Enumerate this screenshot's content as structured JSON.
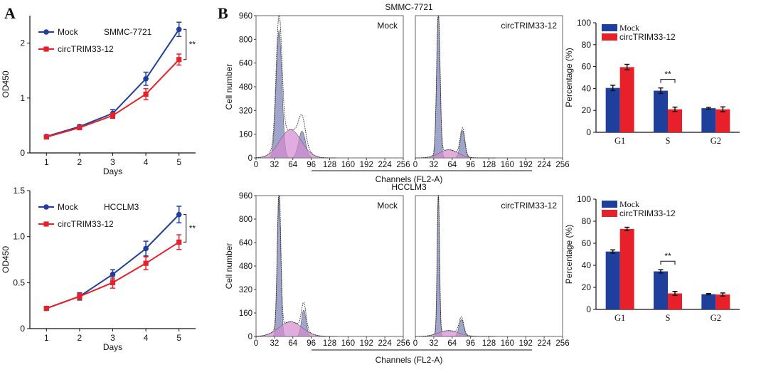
{
  "panel_labels": [
    "A",
    "B"
  ],
  "colors": {
    "mock": "#1f3f9c",
    "circ": "#e8202a",
    "hist_fill": "#8f96c2",
    "hist_pink": "#d48ad0"
  },
  "chart_data": [
    {
      "id": "A-top",
      "type": "line",
      "title": "SMMC-7721",
      "xlabel": "Days",
      "ylabel": "OD450",
      "x": [
        1,
        2,
        3,
        4,
        5
      ],
      "xlim": [
        0.5,
        5.5
      ],
      "ylim": [
        0,
        2.5
      ],
      "y_ticks": [
        0,
        1,
        2
      ],
      "tick_labels_y": [
        "0",
        "1",
        "2"
      ],
      "tick_labels_x": [
        "1",
        "2",
        "3",
        "4",
        "5"
      ],
      "series": [
        {
          "name": "Mock",
          "color": "#1f3f9c",
          "values": [
            0.3,
            0.48,
            0.72,
            1.35,
            2.25
          ],
          "errors": [
            0.03,
            0.03,
            0.07,
            0.12,
            0.13
          ]
        },
        {
          "name": "circTRIM33-12",
          "color": "#e8202a",
          "values": [
            0.29,
            0.46,
            0.68,
            1.07,
            1.7
          ],
          "errors": [
            0.03,
            0.03,
            0.05,
            0.1,
            0.1
          ]
        }
      ],
      "significance": "**",
      "legend": "top-left"
    },
    {
      "id": "A-bottom",
      "type": "line",
      "title": "HCCLM3",
      "xlabel": "Days",
      "ylabel": "OD450",
      "x": [
        1,
        2,
        3,
        4,
        5
      ],
      "xlim": [
        0.5,
        5.5
      ],
      "ylim": [
        0,
        1.5
      ],
      "y_ticks": [
        0,
        0.5,
        1.0,
        1.5
      ],
      "tick_labels_y": [
        "0",
        "0.5",
        "1.0",
        "1.5"
      ],
      "tick_labels_x": [
        "1",
        "2",
        "3",
        "4",
        "5"
      ],
      "series": [
        {
          "name": "Mock",
          "color": "#1f3f9c",
          "values": [
            0.22,
            0.35,
            0.59,
            0.87,
            1.24
          ],
          "errors": [
            0.02,
            0.04,
            0.05,
            0.08,
            0.09
          ]
        },
        {
          "name": "circTRIM33-12",
          "color": "#e8202a",
          "values": [
            0.22,
            0.35,
            0.5,
            0.71,
            0.94
          ],
          "errors": [
            0.02,
            0.03,
            0.06,
            0.07,
            0.08
          ]
        }
      ],
      "significance": "**",
      "legend": "top-left"
    },
    {
      "id": "B-top-left",
      "type": "area",
      "title": "Mock",
      "section_title": "SMMC-7721",
      "xlabel": "Channels (FL2-A)",
      "ylabel": "Cell number",
      "xlim": [
        0,
        256
      ],
      "ylim": [
        0,
        960
      ],
      "x_ticks": [
        0,
        32,
        64,
        96,
        128,
        160,
        192,
        224,
        256
      ],
      "y_ticks": [
        0,
        160,
        320,
        480,
        640,
        800,
        960
      ],
      "g1_peak": {
        "x": 40,
        "height": 860,
        "sd": 5
      },
      "s_phase": {
        "x": 60,
        "height": 190,
        "sd": 14
      },
      "g2_peak": {
        "x": 80,
        "height": 180,
        "sd": 6
      }
    },
    {
      "id": "B-top-right",
      "type": "area",
      "title": "circTRIM33-12",
      "xlabel": "Channels (FL2-A)",
      "ylabel": "",
      "xlim": [
        0,
        256
      ],
      "ylim": [
        0,
        960
      ],
      "x_ticks": [
        0,
        32,
        64,
        96,
        128,
        160,
        192,
        224,
        256
      ],
      "g1_peak": {
        "x": 40,
        "height": 960,
        "sd": 3
      },
      "s_phase": {
        "x": 58,
        "height": 55,
        "sd": 12
      },
      "g2_peak": {
        "x": 82,
        "height": 185,
        "sd": 4
      }
    },
    {
      "id": "B-bottom-left",
      "type": "area",
      "title": "Mock",
      "section_title": "HCCLM3",
      "xlabel": "Channels (FL2-A)",
      "ylabel": "Cell number",
      "xlim": [
        0,
        256
      ],
      "ylim": [
        0,
        960
      ],
      "x_ticks": [
        0,
        32,
        64,
        96,
        128,
        160,
        192,
        224,
        256
      ],
      "y_ticks": [
        0,
        160,
        320,
        480,
        640,
        800,
        960
      ],
      "g1_peak": {
        "x": 40,
        "height": 960,
        "sd": 3
      },
      "s_phase": {
        "x": 60,
        "height": 100,
        "sd": 15
      },
      "g2_peak": {
        "x": 83,
        "height": 180,
        "sd": 4
      }
    },
    {
      "id": "B-bottom-right",
      "type": "area",
      "title": "circTRIM33-12",
      "xlabel": "Channels (FL2-A)",
      "ylabel": "",
      "xlim": [
        0,
        256
      ],
      "ylim": [
        0,
        960
      ],
      "x_ticks": [
        0,
        32,
        64,
        96,
        128,
        160,
        192,
        224,
        256
      ],
      "g1_peak": {
        "x": 40,
        "height": 960,
        "sd": 2
      },
      "s_phase": {
        "x": 58,
        "height": 40,
        "sd": 13
      },
      "g2_peak": {
        "x": 80,
        "height": 115,
        "sd": 4
      }
    },
    {
      "id": "B-top-bar",
      "type": "bar",
      "title": "",
      "xlabel": "",
      "ylabel": "Percentage (%)",
      "categories": [
        "G1",
        "S",
        "G2"
      ],
      "ylim": [
        0,
        100
      ],
      "y_ticks": [
        0,
        20,
        40,
        60,
        80,
        100
      ],
      "series": [
        {
          "name": "Mock",
          "color": "#1f3f9c",
          "values": [
            40.5,
            38,
            22
          ],
          "errors": [
            2.5,
            2.5,
            0.8
          ]
        },
        {
          "name": "circTRIM33-12",
          "color": "#e8202a",
          "values": [
            59.5,
            21,
            21
          ],
          "errors": [
            2.5,
            2,
            2.2
          ]
        }
      ],
      "significance": {
        "category": "S",
        "label": "**"
      },
      "legend": "top-left"
    },
    {
      "id": "B-bottom-bar",
      "type": "bar",
      "title": "",
      "xlabel": "",
      "ylabel": "Percentage (%)",
      "categories": [
        "G1",
        "S",
        "G2"
      ],
      "ylim": [
        0,
        100
      ],
      "y_ticks": [
        0,
        20,
        40,
        60,
        80,
        100
      ],
      "series": [
        {
          "name": "Mock",
          "color": "#1f3f9c",
          "values": [
            52.5,
            34.5,
            13.8
          ],
          "errors": [
            1.5,
            1.5,
            0.6
          ]
        },
        {
          "name": "circTRIM33-12",
          "color": "#e8202a",
          "values": [
            73,
            14.5,
            13.5
          ],
          "errors": [
            1.5,
            1.8,
            1.4
          ]
        }
      ],
      "significance": {
        "category": "S",
        "label": "**"
      },
      "legend": "top-left"
    }
  ]
}
